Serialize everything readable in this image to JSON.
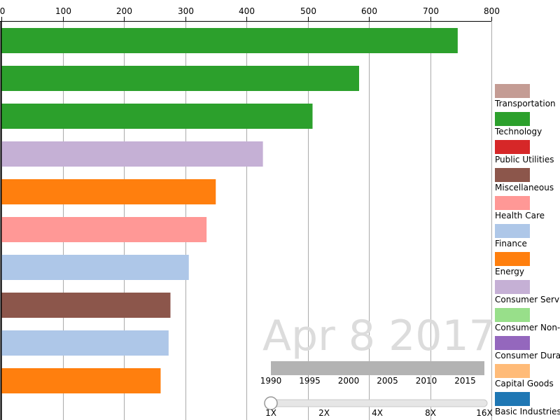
{
  "colors": {
    "green": "#2ca02c",
    "lavender": "#c5b0d5",
    "orange": "#ff7f0e",
    "pink": "#ff9896",
    "lightblue": "#aec7e8",
    "brown": "#8c564b",
    "timeline_bar": "#b3b3b3",
    "date_text": "#dcdcdc"
  },
  "date_label": "Apr 8 2017",
  "chart_data": {
    "type": "bar",
    "orientation": "horizontal",
    "xlim": [
      0,
      800
    ],
    "x_ticks": [
      0,
      100,
      200,
      300,
      400,
      500,
      600,
      700,
      800
    ],
    "grid": true,
    "legend_position": "right",
    "bars": [
      {
        "value": 745,
        "color": "#2ca02c"
      },
      {
        "value": 584,
        "color": "#2ca02c"
      },
      {
        "value": 508,
        "color": "#2ca02c"
      },
      {
        "value": 427,
        "color": "#c5b0d5"
      },
      {
        "value": 350,
        "color": "#ff7f0e"
      },
      {
        "value": 335,
        "color": "#ff9896"
      },
      {
        "value": 306,
        "color": "#aec7e8"
      },
      {
        "value": 276,
        "color": "#8c564b"
      },
      {
        "value": 273,
        "color": "#aec7e8"
      },
      {
        "value": 260,
        "color": "#ff7f0e"
      }
    ],
    "legend": [
      {
        "label": "Transportation",
        "color": "#c49c94"
      },
      {
        "label": "Technology",
        "color": "#2ca02c"
      },
      {
        "label": "Public Utilities",
        "color": "#d62728"
      },
      {
        "label": "Miscellaneous",
        "color": "#8c564b"
      },
      {
        "label": "Health Care",
        "color": "#ff9896"
      },
      {
        "label": "Finance",
        "color": "#aec7e8"
      },
      {
        "label": "Energy",
        "color": "#ff7f0e"
      },
      {
        "label": "Consumer Services",
        "color": "#c5b0d5"
      },
      {
        "label": "Consumer Non-Durables",
        "color": "#98df8a"
      },
      {
        "label": "Consumer Durables",
        "color": "#9467bd"
      },
      {
        "label": "Capital Goods",
        "color": "#ffbb78"
      },
      {
        "label": "Basic Industries",
        "color": "#1f77b4"
      }
    ]
  },
  "timeline": {
    "ticks": [
      "1990",
      "1995",
      "2000",
      "2005",
      "2010",
      "2015"
    ],
    "progress": 1.0
  },
  "speed": {
    "ticks": [
      "1X",
      "2X",
      "4X",
      "8X",
      "16X"
    ],
    "value": "1X"
  }
}
